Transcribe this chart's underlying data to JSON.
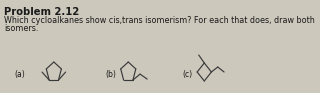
{
  "title": "Problem 2.12",
  "line1": "Which cycloalkanes show cis,trans isomerism? For each that does, draw both",
  "line2": "isomers.",
  "label_a": "(a)",
  "label_b": "(b)",
  "label_c": "(c)",
  "bg_color": "#ccc8bc",
  "text_color": "#1a1a1a",
  "title_fontsize": 7.2,
  "body_fontsize": 5.8,
  "label_fontsize": 5.5,
  "mol_lw": 0.85
}
